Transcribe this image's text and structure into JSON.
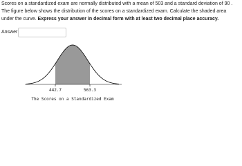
{
  "question": {
    "text": "Scores on a standardized exam are normally distributed with a mean of 503 and a standard deviation of 90 . The figure below shows the distribution of the scores on a standardized exam. Calculate the shaded area under the curve.",
    "instruction": "Express your answer in decimal form with at least two decimal place accuracy."
  },
  "answer": {
    "label": "Answer:"
  },
  "figure": {
    "left_label": "442.7",
    "right_label": "563.3",
    "caption": "The Scores on a Standardized Exam"
  }
}
